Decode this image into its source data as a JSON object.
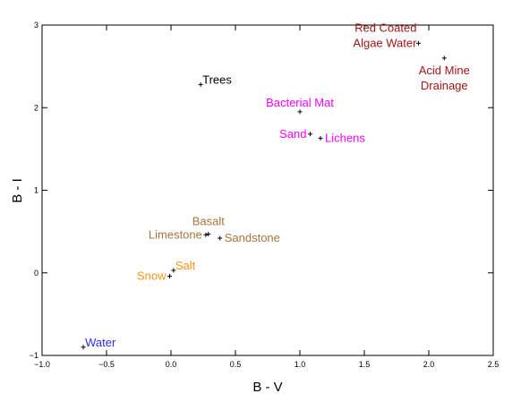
{
  "chart_data": {
    "type": "scatter",
    "xlabel": "B - V",
    "ylabel": "B - I",
    "xlim": [
      -1.0,
      2.5
    ],
    "ylim": [
      -1.0,
      3.0
    ],
    "x_ticks": [
      -1.0,
      -0.5,
      0.0,
      0.5,
      1.0,
      1.5,
      2.0,
      2.5
    ],
    "x_tick_labels": [
      "−1.0",
      "−0.5",
      "0.0",
      "0.5",
      "1.0",
      "1.5",
      "2.0",
      "2.5"
    ],
    "y_ticks": [
      -1,
      0,
      1,
      2,
      3
    ],
    "y_tick_labels": [
      "−1",
      "0",
      "1",
      "2",
      "3"
    ],
    "grid": false,
    "points": [
      {
        "label": "Red Coated Algae Water",
        "lines": [
          "Red Coated",
          "Algae Water"
        ],
        "x": 1.92,
        "y": 2.78,
        "color": "#a31515",
        "anchor": "end-above"
      },
      {
        "label": "Acid Mine Drainage",
        "lines": [
          "Acid Mine",
          "Drainage"
        ],
        "x": 2.12,
        "y": 2.6,
        "color": "#a31515",
        "anchor": "below"
      },
      {
        "label": "Trees",
        "lines": [
          "Trees"
        ],
        "x": 0.23,
        "y": 2.28,
        "color": "#000000",
        "anchor": "right-up"
      },
      {
        "label": "Bacterial Mat",
        "lines": [
          "Bacterial Mat"
        ],
        "x": 1.0,
        "y": 1.95,
        "color": "#ff00ff",
        "anchor": "above"
      },
      {
        "label": "Sand",
        "lines": [
          "Sand"
        ],
        "x": 1.08,
        "y": 1.68,
        "color": "#ff00ff",
        "anchor": "left"
      },
      {
        "label": "Lichens",
        "lines": [
          "Lichens"
        ],
        "x": 1.16,
        "y": 1.63,
        "color": "#ff00ff",
        "anchor": "right"
      },
      {
        "label": "Basalt",
        "lines": [
          "Basalt"
        ],
        "x": 0.29,
        "y": 0.47,
        "color": "#a8743c",
        "anchor": "above-center"
      },
      {
        "label": "Limestone",
        "lines": [
          "Limestone"
        ],
        "x": 0.27,
        "y": 0.46,
        "color": "#a8743c",
        "anchor": "left"
      },
      {
        "label": "Sandstone",
        "lines": [
          "Sandstone"
        ],
        "x": 0.38,
        "y": 0.42,
        "color": "#a8743c",
        "anchor": "right"
      },
      {
        "label": "Salt",
        "lines": [
          "Salt"
        ],
        "x": 0.02,
        "y": 0.03,
        "color": "#f7941d",
        "anchor": "right-up"
      },
      {
        "label": "Snow",
        "lines": [
          "Snow"
        ],
        "x": -0.01,
        "y": -0.04,
        "color": "#f7941d",
        "anchor": "left"
      },
      {
        "label": "Water",
        "lines": [
          "Water"
        ],
        "x": -0.68,
        "y": -0.9,
        "color": "#2e2ef2",
        "anchor": "right-up"
      }
    ]
  }
}
